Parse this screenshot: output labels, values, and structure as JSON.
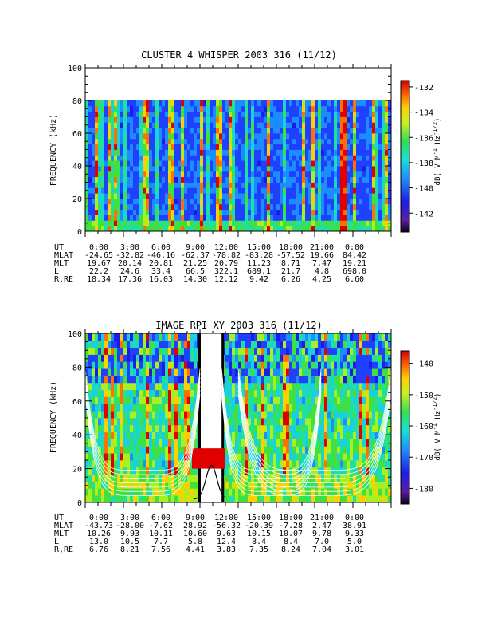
{
  "chart_data": [
    {
      "type": "heatmap",
      "title": "CLUSTER 4 WHISPER 2003 316 (11/12)",
      "ylabel": "FREQUENCY (kHz)",
      "ylim": [
        0,
        100
      ],
      "yticks": [
        "0",
        "20",
        "40",
        "60",
        "80",
        "100"
      ],
      "data_ylim": [
        0,
        80
      ],
      "xlim_hours": [
        0,
        24
      ],
      "colorbar": {
        "label_parts": [
          "dB( V M",
          "-1",
          " Hz",
          "-1/2",
          ")"
        ],
        "range": [
          -143.5,
          -131.5
        ],
        "ticks": [
          "-132",
          "-134",
          "-136",
          "-138",
          "-140",
          "-142"
        ],
        "tick_values": [
          -132,
          -134,
          -136,
          -138,
          -140,
          -142
        ]
      },
      "orbit_table": {
        "row_labels": [
          "UT",
          "MLAT",
          "MLT",
          "L",
          "R,RE"
        ],
        "UT": [
          "0:00",
          "3:00",
          "6:00",
          "9:00",
          "12:00",
          "15:00",
          "18:00",
          "21:00",
          "0:00"
        ],
        "MLAT": [
          "-24.65",
          "-32.82",
          "-46.16",
          "-62.37",
          "-78.82",
          "-83.28",
          "-57.52",
          "19.66",
          "84.42"
        ],
        "MLT": [
          "19.67",
          "20.14",
          "20.81",
          "21.25",
          "20.79",
          "11.23",
          "8.71",
          "7.47",
          "19.21"
        ],
        "L": [
          "22.2",
          "24.6",
          "33.4",
          "66.5",
          "322.1",
          "689.1",
          "21.7",
          "4.8",
          "698.0"
        ],
        "R,RE": [
          "18.34",
          "17.36",
          "16.03",
          "14.30",
          "12.12",
          "9.42",
          "6.26",
          "4.25",
          "6.60"
        ]
      }
    },
    {
      "type": "heatmap",
      "title": "IMAGE RPI XY 2003 316 (11/12)",
      "ylabel": "FREQUENCY (kHz)",
      "ylim": [
        0,
        100
      ],
      "yticks": [
        "0",
        "20",
        "40",
        "60",
        "80",
        "100"
      ],
      "xlim_hours": [
        0,
        24
      ],
      "data_gap_hours": [
        [
          9.0,
          10.7
        ]
      ],
      "colorbar": {
        "label_parts": [
          "dB( V M",
          "-1",
          " Hz",
          "-1/2",
          ")"
        ],
        "range": [
          -185,
          -136
        ],
        "ticks": [
          "-140",
          "-150",
          "-160",
          "-170",
          "-180"
        ],
        "tick_values": [
          -140,
          -150,
          -160,
          -170,
          -180
        ]
      },
      "orbit_table": {
        "row_labels": [
          "UT",
          "MLAT",
          "MLT",
          "L",
          "R,RE"
        ],
        "UT": [
          "0:00",
          "3:00",
          "6:00",
          "9:00",
          "12:00",
          "15:00",
          "18:00",
          "21:00",
          "0:00"
        ],
        "MLAT": [
          "-43.73",
          "-28.00",
          "-7.62",
          "28.92",
          "-56.32",
          "-20.39",
          "-7.28",
          "2.47",
          "38.91"
        ],
        "MLT": [
          "10.26",
          "9.93",
          "10.11",
          "10.60",
          "9.63",
          "10.15",
          "10.07",
          "9.78",
          "9.33"
        ],
        "L": [
          "13.0",
          "10.5",
          "7.7",
          "5.8",
          "12.4",
          "8.4",
          "8.4",
          "7.0",
          "5.0"
        ],
        "R,RE": [
          "6.76",
          "8.21",
          "7.56",
          "4.41",
          "3.83",
          "7.35",
          "8.24",
          "7.04",
          "3.01"
        ]
      }
    }
  ]
}
